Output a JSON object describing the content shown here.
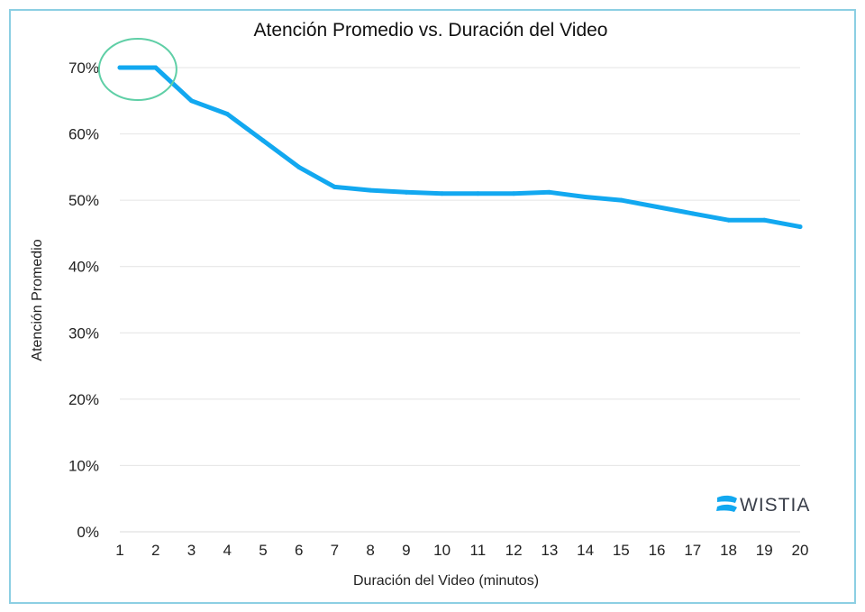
{
  "chart_data": {
    "type": "line",
    "title": "Atención Promedio vs. Duración del Video",
    "xlabel": "Duración del Video (minutos)",
    "ylabel": "Atención Promedio",
    "x": [
      1,
      2,
      3,
      4,
      5,
      6,
      7,
      8,
      9,
      10,
      11,
      12,
      13,
      14,
      15,
      16,
      17,
      18,
      19,
      20
    ],
    "series": [
      {
        "values": [
          70,
          70,
          65,
          63,
          59,
          55,
          52,
          51.5,
          51.2,
          51,
          51,
          51,
          51.2,
          50.5,
          50,
          49,
          48,
          47,
          47,
          46
        ]
      }
    ],
    "ylim": [
      0,
      70
    ],
    "yticks": [
      "0%",
      "10%",
      "20%",
      "30%",
      "40%",
      "50%",
      "60%",
      "70%"
    ],
    "xticks": [
      "1",
      "2",
      "3",
      "4",
      "5",
      "6",
      "7",
      "8",
      "9",
      "10",
      "11",
      "12",
      "13",
      "14",
      "15",
      "16",
      "17",
      "18",
      "19",
      "20"
    ],
    "grid": true,
    "annotation": "circle highlighting minutes 1–2",
    "colors": {
      "line": "#12a8f0",
      "highlight": "#5fcfa6",
      "grid": "#e4e4e4",
      "frame": "#8ccfe3"
    }
  },
  "brand": {
    "logo_text": "WISTIA",
    "icon": "wistia-logo-icon",
    "color": "#3a3f4a"
  }
}
